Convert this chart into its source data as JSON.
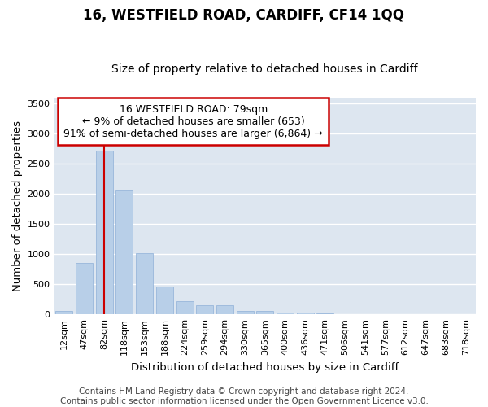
{
  "title": "16, WESTFIELD ROAD, CARDIFF, CF14 1QQ",
  "subtitle": "Size of property relative to detached houses in Cardiff",
  "xlabel": "Distribution of detached houses by size in Cardiff",
  "ylabel": "Number of detached properties",
  "categories": [
    "12sqm",
    "47sqm",
    "82sqm",
    "118sqm",
    "153sqm",
    "188sqm",
    "224sqm",
    "259sqm",
    "294sqm",
    "330sqm",
    "365sqm",
    "400sqm",
    "436sqm",
    "471sqm",
    "506sqm",
    "541sqm",
    "577sqm",
    "612sqm",
    "647sqm",
    "683sqm",
    "718sqm"
  ],
  "values": [
    55,
    850,
    2720,
    2060,
    1020,
    460,
    215,
    155,
    155,
    55,
    55,
    35,
    30,
    20,
    5,
    3,
    2,
    1,
    1,
    1,
    1
  ],
  "bar_color": "#b8cfe8",
  "bar_edge_color": "#8fb0d8",
  "background_color": "#dde6f0",
  "grid_color": "#ffffff",
  "annotation_box_text": "16 WESTFIELD ROAD: 79sqm\n← 9% of detached houses are smaller (653)\n91% of semi-detached houses are larger (6,864) →",
  "annotation_box_color": "#ffffff",
  "annotation_box_edge_color": "#cc0000",
  "vline_x": 2,
  "vline_color": "#cc0000",
  "ylim": [
    0,
    3600
  ],
  "yticks": [
    0,
    500,
    1000,
    1500,
    2000,
    2500,
    3000,
    3500
  ],
  "title_fontsize": 12,
  "subtitle_fontsize": 10,
  "axis_label_fontsize": 9.5,
  "tick_fontsize": 8,
  "annotation_fontsize": 9,
  "footer_text": "Contains HM Land Registry data © Crown copyright and database right 2024.\nContains public sector information licensed under the Open Government Licence v3.0.",
  "footer_fontsize": 7.5,
  "fig_bg_color": "#ffffff"
}
